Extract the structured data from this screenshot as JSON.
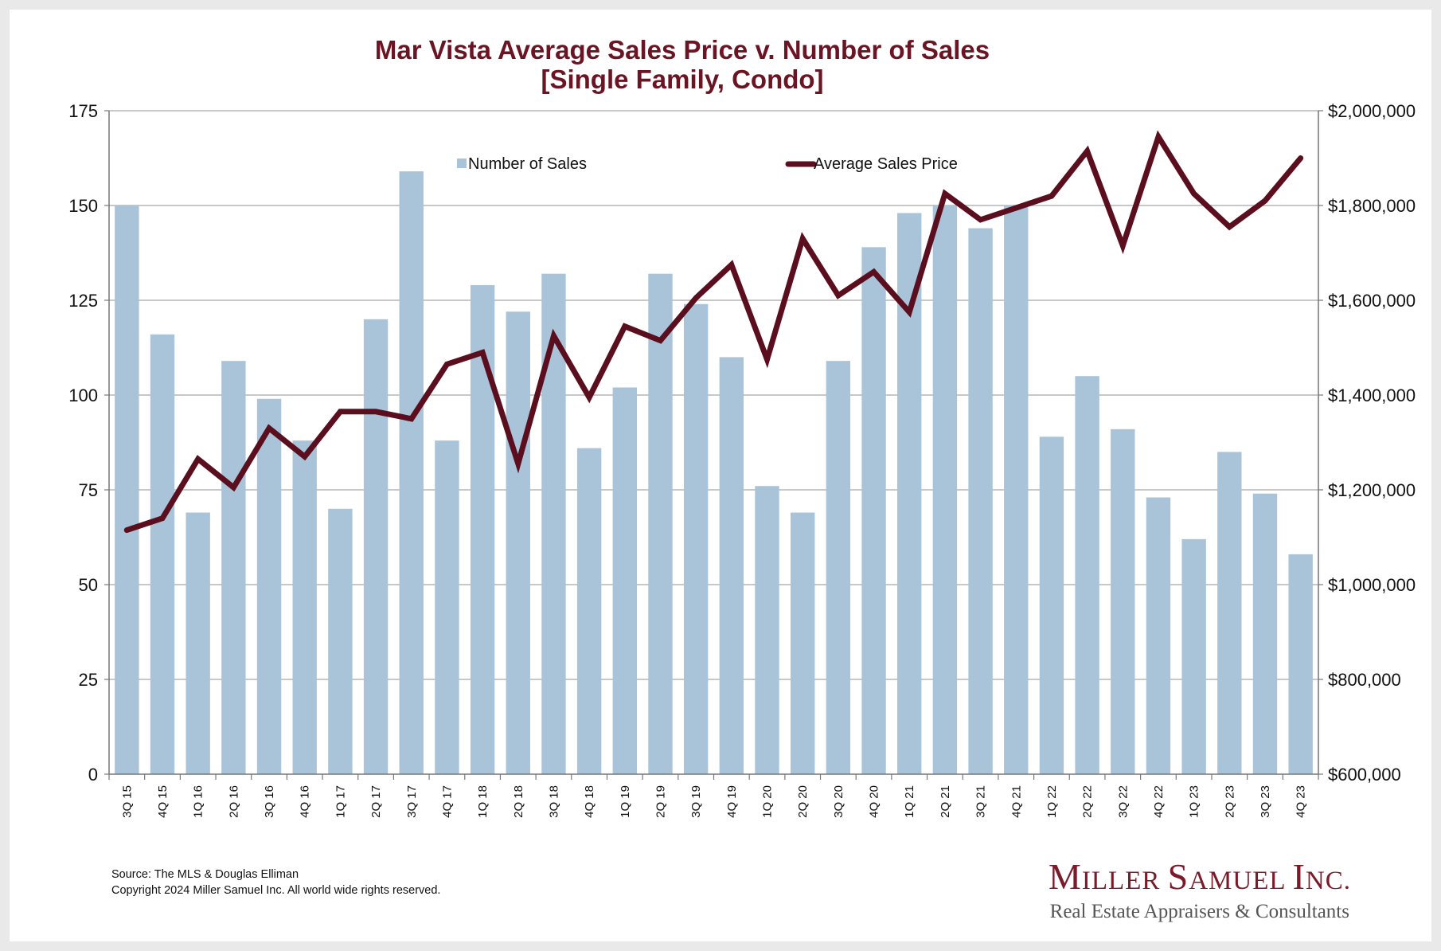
{
  "title_line1": "Mar Vista Average Sales Price v. Number of Sales",
  "title_line2": "[Single Family, Condo]",
  "source_line1": "Source: The MLS & Douglas Elliman",
  "source_line2": "Copyright 2024 Miller Samuel Inc.  All world wide rights reserved.",
  "logo": {
    "name_big_1": "M",
    "name_small_1": "ILLER ",
    "name_big_2": "S",
    "name_small_2": "AMUEL ",
    "name_big_3": "I",
    "name_small_3": "NC.",
    "tagline": "Real Estate Appraisers & Consultants"
  },
  "colors": {
    "bar": "#a9c4d8",
    "line": "#5b0f1e",
    "grid": "#a6a6a6",
    "title": "#6b1424"
  },
  "chart_data": {
    "type": "bar+line",
    "categories": [
      "3Q 15",
      "4Q 15",
      "1Q 16",
      "2Q 16",
      "3Q 16",
      "4Q 16",
      "1Q 17",
      "2Q 17",
      "3Q 17",
      "4Q 17",
      "1Q 18",
      "2Q 18",
      "3Q 18",
      "4Q 18",
      "1Q 19",
      "2Q 19",
      "3Q 19",
      "4Q 19",
      "1Q 20",
      "2Q 20",
      "3Q 20",
      "4Q 20",
      "1Q 21",
      "2Q 21",
      "3Q 21",
      "4Q 21",
      "1Q 22",
      "2Q 22",
      "3Q 22",
      "4Q 22",
      "1Q 23",
      "2Q 23",
      "3Q 23",
      "4Q 23"
    ],
    "series": [
      {
        "name": "Number of Sales",
        "type": "bar",
        "axis": "left",
        "values": [
          150,
          116,
          69,
          109,
          99,
          88,
          70,
          120,
          159,
          88,
          129,
          122,
          132,
          86,
          102,
          132,
          124,
          110,
          76,
          69,
          109,
          139,
          148,
          150,
          144,
          150,
          89,
          105,
          91,
          73,
          62,
          85,
          74,
          58
        ]
      },
      {
        "name": "Average Sales Price",
        "type": "line",
        "axis": "right",
        "values": [
          1115000,
          1140000,
          1265000,
          1205000,
          1330000,
          1270000,
          1365000,
          1365000,
          1350000,
          1465000,
          1490000,
          1255000,
          1525000,
          1395000,
          1545000,
          1515000,
          1605000,
          1675000,
          1475000,
          1730000,
          1610000,
          1660000,
          1575000,
          1825000,
          1770000,
          1795000,
          1820000,
          1915000,
          1715000,
          1945000,
          1825000,
          1755000,
          1810000,
          1900000
        ]
      }
    ],
    "y_left": {
      "min": 0,
      "max": 175,
      "ticks": [
        0,
        25,
        50,
        75,
        100,
        125,
        150,
        175
      ],
      "tick_labels": [
        "0",
        "25",
        "50",
        "75",
        "100",
        "125",
        "150",
        "175"
      ]
    },
    "y_right": {
      "min": 600000,
      "max": 2000000,
      "ticks": [
        600000,
        800000,
        1000000,
        1200000,
        1400000,
        1600000,
        1800000,
        2000000
      ],
      "tick_labels": [
        "$600,000",
        "$800,000",
        "$1,000,000",
        "$1,200,000",
        "$1,400,000",
        "$1,600,000",
        "$1,800,000",
        "$2,000,000"
      ]
    },
    "grid": true,
    "legend_position": "top"
  }
}
